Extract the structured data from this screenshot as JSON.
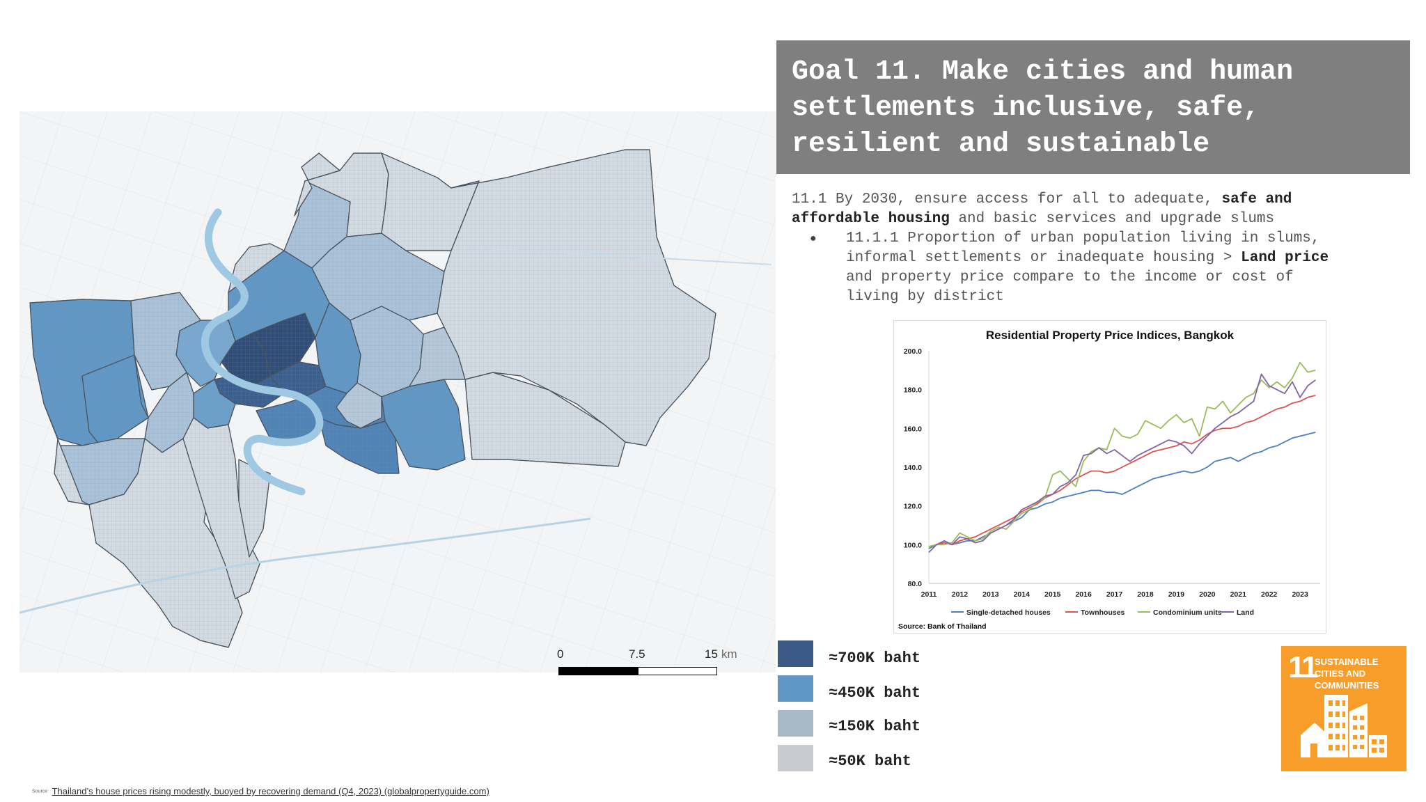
{
  "goal": {
    "title_lines": [
      "Goal 11. Make cities and human",
      "settlements inclusive, safe,",
      "resilient and sustainable"
    ]
  },
  "target": {
    "part1": "11.1 By 2030, ensure access for all to adequate,",
    "bold1": "safe and",
    "bold2": "affordable housing",
    "part2": "and basic services and upgrade slums"
  },
  "indicator": {
    "line1": "11.1.1 Proportion of urban population living in slums,",
    "line2a": "informal settlements or inadequate housing >",
    "bold": "Land price",
    "line3": "and property price compare to the income or cost of",
    "line4": "living by district"
  },
  "legend": [
    {
      "label": "≈700K baht",
      "color": "#3b5a85"
    },
    {
      "label": "≈450K baht",
      "color": "#5f98c6"
    },
    {
      "label": "≈150K baht",
      "color": "#a9b9c8"
    },
    {
      "label": "≈50K baht",
      "color": "#c8ccd1"
    }
  ],
  "scalebar": {
    "labels": [
      "0",
      "7.5",
      "15"
    ],
    "unit": "km"
  },
  "colors": {
    "header_bg": "#7f7f7f",
    "dark": "#3b5a85",
    "medium": "#5f98c6",
    "light": "#a9c2d8",
    "lightest": "#d3dae2",
    "river": "#9fc8e3",
    "sdg": "#f89d2a"
  },
  "sdg": {
    "number": "11",
    "title": "SUSTAINABLE CITIES AND COMMUNITIES"
  },
  "source": {
    "prefix": "Source:",
    "text": "Thailand’s house prices rising modestly, buoyed by recovering demand (Q4, 2023) (globalpropertyguide.com)"
  },
  "chart_data": {
    "type": "line",
    "title": "Residential Property Price Indices, Bangkok",
    "source": "Source: Bank of Thailand",
    "x_ticks": [
      "2011",
      "2012",
      "2013",
      "2014",
      "2015",
      "2016",
      "2017",
      "2018",
      "2019",
      "2020",
      "2021",
      "2022",
      "2023"
    ],
    "y_ticks": [
      "80.0",
      "100.0",
      "120.0",
      "140.0",
      "160.0",
      "180.0",
      "200.0"
    ],
    "ylim": [
      80,
      200
    ],
    "xlim": [
      2011,
      2023.65
    ],
    "legend_position": "bottom",
    "series": [
      {
        "name": "Single-detached houses",
        "color": "#4a7fc1",
        "points": [
          [
            2011.0,
            98
          ],
          [
            2011.25,
            100
          ],
          [
            2011.5,
            101
          ],
          [
            2011.75,
            100
          ],
          [
            2012.0,
            101
          ],
          [
            2012.25,
            102
          ],
          [
            2012.5,
            102
          ],
          [
            2012.75,
            104
          ],
          [
            2013.0,
            106
          ],
          [
            2013.25,
            108
          ],
          [
            2013.5,
            110
          ],
          [
            2013.75,
            112
          ],
          [
            2014.0,
            114
          ],
          [
            2014.25,
            118
          ],
          [
            2014.5,
            119
          ],
          [
            2014.75,
            121
          ],
          [
            2015.0,
            122
          ],
          [
            2015.25,
            124
          ],
          [
            2015.5,
            125
          ],
          [
            2015.75,
            126
          ],
          [
            2016.0,
            127
          ],
          [
            2016.25,
            128
          ],
          [
            2016.5,
            128
          ],
          [
            2016.75,
            127
          ],
          [
            2017.0,
            127
          ],
          [
            2017.25,
            126
          ],
          [
            2017.5,
            128
          ],
          [
            2017.75,
            130
          ],
          [
            2018.0,
            132
          ],
          [
            2018.25,
            134
          ],
          [
            2018.5,
            135
          ],
          [
            2018.75,
            136
          ],
          [
            2019.0,
            137
          ],
          [
            2019.25,
            138
          ],
          [
            2019.5,
            137
          ],
          [
            2019.75,
            138
          ],
          [
            2020.0,
            140
          ],
          [
            2020.25,
            143
          ],
          [
            2020.5,
            144
          ],
          [
            2020.75,
            145
          ],
          [
            2021.0,
            143
          ],
          [
            2021.25,
            145
          ],
          [
            2021.5,
            147
          ],
          [
            2021.75,
            148
          ],
          [
            2022.0,
            150
          ],
          [
            2022.25,
            151
          ],
          [
            2022.5,
            153
          ],
          [
            2022.75,
            155
          ],
          [
            2023.0,
            156
          ],
          [
            2023.25,
            157
          ],
          [
            2023.5,
            158
          ]
        ]
      },
      {
        "name": "Townhouses",
        "color": "#d9534f",
        "points": [
          [
            2011.0,
            99
          ],
          [
            2011.25,
            100
          ],
          [
            2011.5,
            101
          ],
          [
            2011.75,
            100
          ],
          [
            2012.0,
            102
          ],
          [
            2012.25,
            103
          ],
          [
            2012.5,
            104
          ],
          [
            2012.75,
            106
          ],
          [
            2013.0,
            108
          ],
          [
            2013.25,
            110
          ],
          [
            2013.5,
            112
          ],
          [
            2013.75,
            114
          ],
          [
            2014.0,
            117
          ],
          [
            2014.25,
            119
          ],
          [
            2014.5,
            121
          ],
          [
            2014.75,
            124
          ],
          [
            2015.0,
            126
          ],
          [
            2015.25,
            128
          ],
          [
            2015.5,
            131
          ],
          [
            2015.75,
            134
          ],
          [
            2016.0,
            136
          ],
          [
            2016.25,
            138
          ],
          [
            2016.5,
            138
          ],
          [
            2016.75,
            137
          ],
          [
            2017.0,
            138
          ],
          [
            2017.25,
            140
          ],
          [
            2017.5,
            142
          ],
          [
            2017.75,
            144
          ],
          [
            2018.0,
            146
          ],
          [
            2018.25,
            148
          ],
          [
            2018.5,
            149
          ],
          [
            2018.75,
            150
          ],
          [
            2019.0,
            151
          ],
          [
            2019.25,
            153
          ],
          [
            2019.5,
            152
          ],
          [
            2019.75,
            154
          ],
          [
            2020.0,
            157
          ],
          [
            2020.25,
            159
          ],
          [
            2020.5,
            160
          ],
          [
            2020.75,
            160
          ],
          [
            2021.0,
            161
          ],
          [
            2021.25,
            163
          ],
          [
            2021.5,
            164
          ],
          [
            2021.75,
            166
          ],
          [
            2022.0,
            168
          ],
          [
            2022.25,
            170
          ],
          [
            2022.5,
            171
          ],
          [
            2022.75,
            173
          ],
          [
            2023.0,
            174
          ],
          [
            2023.25,
            176
          ],
          [
            2023.5,
            177
          ]
        ]
      },
      {
        "name": "Condominium units",
        "color": "#9bbb59",
        "points": [
          [
            2011.0,
            99
          ],
          [
            2011.25,
            100
          ],
          [
            2011.5,
            100
          ],
          [
            2011.75,
            101
          ],
          [
            2012.0,
            106
          ],
          [
            2012.25,
            104
          ],
          [
            2012.5,
            102
          ],
          [
            2012.75,
            103
          ],
          [
            2013.0,
            107
          ],
          [
            2013.25,
            109
          ],
          [
            2013.5,
            108
          ],
          [
            2013.75,
            112
          ],
          [
            2014.0,
            116
          ],
          [
            2014.25,
            118
          ],
          [
            2014.5,
            122
          ],
          [
            2014.75,
            124
          ],
          [
            2015.0,
            136
          ],
          [
            2015.25,
            138
          ],
          [
            2015.5,
            134
          ],
          [
            2015.75,
            130
          ],
          [
            2016.0,
            143
          ],
          [
            2016.25,
            148
          ],
          [
            2016.5,
            150
          ],
          [
            2016.75,
            149
          ],
          [
            2017.0,
            160
          ],
          [
            2017.25,
            156
          ],
          [
            2017.5,
            155
          ],
          [
            2017.75,
            157
          ],
          [
            2018.0,
            164
          ],
          [
            2018.25,
            162
          ],
          [
            2018.5,
            160
          ],
          [
            2018.75,
            164
          ],
          [
            2019.0,
            167
          ],
          [
            2019.25,
            163
          ],
          [
            2019.5,
            165
          ],
          [
            2019.75,
            156
          ],
          [
            2020.0,
            171
          ],
          [
            2020.25,
            170
          ],
          [
            2020.5,
            174
          ],
          [
            2020.75,
            168
          ],
          [
            2021.0,
            172
          ],
          [
            2021.25,
            176
          ],
          [
            2021.5,
            178
          ],
          [
            2021.75,
            185
          ],
          [
            2022.0,
            181
          ],
          [
            2022.25,
            184
          ],
          [
            2022.5,
            181
          ],
          [
            2022.75,
            186
          ],
          [
            2023.0,
            194
          ],
          [
            2023.25,
            189
          ],
          [
            2023.5,
            190
          ]
        ]
      },
      {
        "name": "Land",
        "color": "#8064a2",
        "points": [
          [
            2011.0,
            96
          ],
          [
            2011.25,
            100
          ],
          [
            2011.5,
            102
          ],
          [
            2011.75,
            100
          ],
          [
            2012.0,
            104
          ],
          [
            2012.25,
            103
          ],
          [
            2012.5,
            101
          ],
          [
            2012.75,
            102
          ],
          [
            2013.0,
            106
          ],
          [
            2013.25,
            108
          ],
          [
            2013.5,
            110
          ],
          [
            2013.75,
            113
          ],
          [
            2014.0,
            118
          ],
          [
            2014.25,
            120
          ],
          [
            2014.5,
            122
          ],
          [
            2014.75,
            125
          ],
          [
            2015.0,
            126
          ],
          [
            2015.25,
            130
          ],
          [
            2015.5,
            132
          ],
          [
            2015.75,
            136
          ],
          [
            2016.0,
            146
          ],
          [
            2016.25,
            147
          ],
          [
            2016.5,
            150
          ],
          [
            2016.75,
            147
          ],
          [
            2017.0,
            149
          ],
          [
            2017.25,
            146
          ],
          [
            2017.5,
            143
          ],
          [
            2017.75,
            146
          ],
          [
            2018.0,
            148
          ],
          [
            2018.25,
            150
          ],
          [
            2018.5,
            152
          ],
          [
            2018.75,
            154
          ],
          [
            2019.0,
            153
          ],
          [
            2019.25,
            151
          ],
          [
            2019.5,
            147
          ],
          [
            2019.75,
            152
          ],
          [
            2020.0,
            156
          ],
          [
            2020.25,
            160
          ],
          [
            2020.5,
            163
          ],
          [
            2020.75,
            166
          ],
          [
            2021.0,
            168
          ],
          [
            2021.25,
            171
          ],
          [
            2021.5,
            174
          ],
          [
            2021.75,
            188
          ],
          [
            2022.0,
            182
          ],
          [
            2022.25,
            180
          ],
          [
            2022.5,
            178
          ],
          [
            2022.75,
            184
          ],
          [
            2023.0,
            176
          ],
          [
            2023.25,
            182
          ],
          [
            2023.5,
            185
          ]
        ]
      }
    ]
  }
}
